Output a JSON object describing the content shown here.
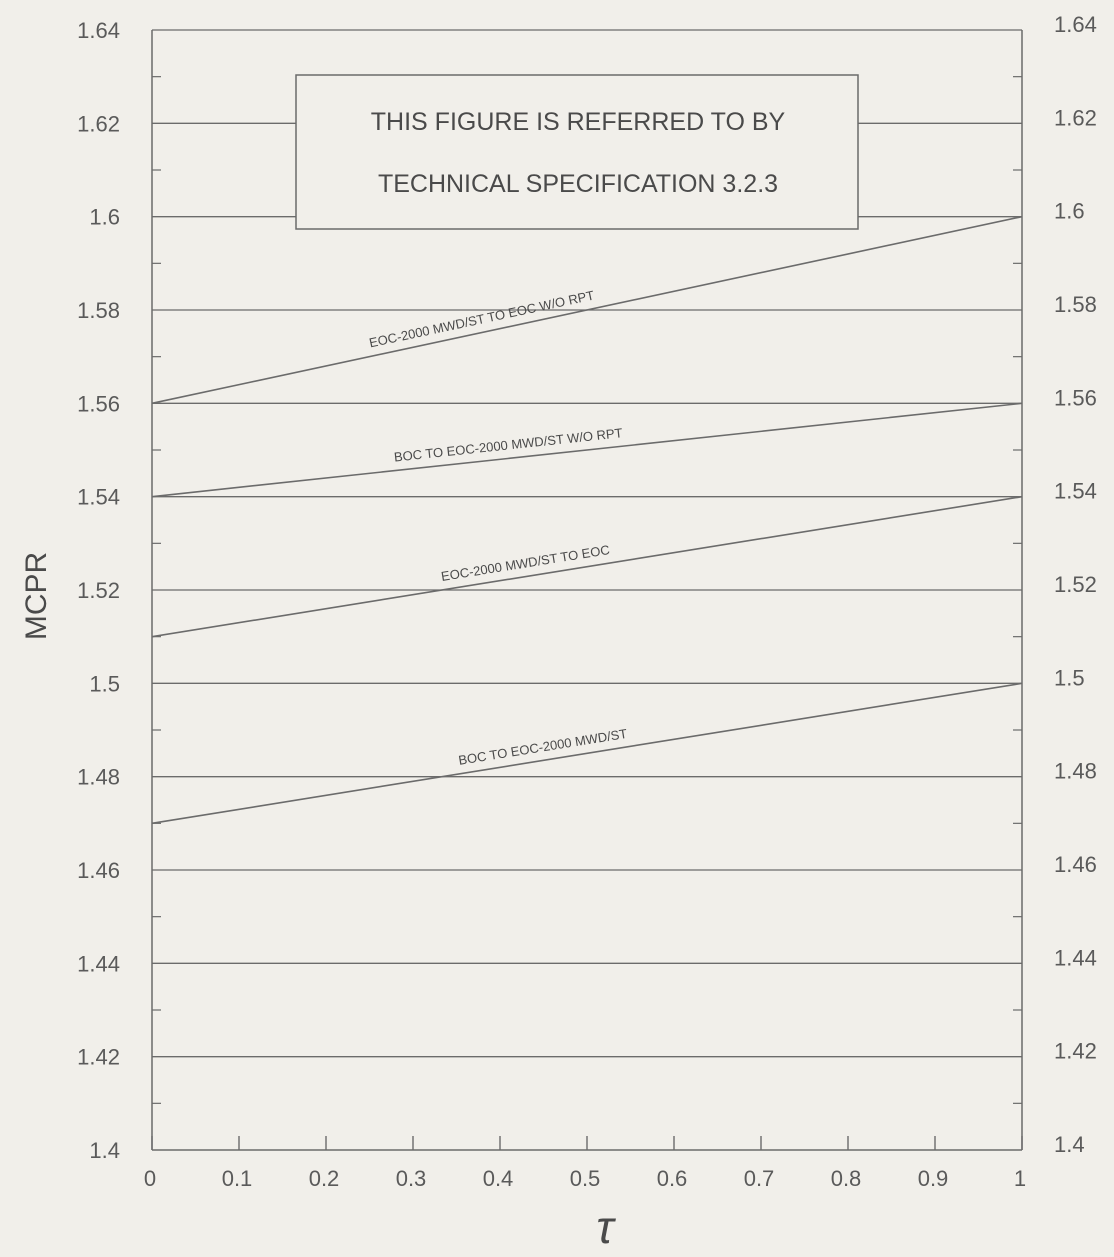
{
  "chart_data": {
    "type": "line",
    "title": "",
    "xlabel": "τ",
    "ylabel": "MCPR",
    "xlim": [
      0,
      1
    ],
    "ylim": [
      1.4,
      1.64
    ],
    "x_ticks": [
      0,
      0.1,
      0.2,
      0.3,
      0.4,
      0.5,
      0.6,
      0.7,
      0.8,
      0.9,
      1
    ],
    "x_tick_labels": [
      "0",
      "0.1",
      "0.2",
      "0.3",
      "0.4",
      "0.5",
      "0.6",
      "0.7",
      "0.8",
      "0.9",
      "1"
    ],
    "y_ticks": [
      1.4,
      1.42,
      1.44,
      1.46,
      1.48,
      1.5,
      1.52,
      1.54,
      1.56,
      1.58,
      1.6,
      1.62,
      1.64
    ],
    "y_tick_labels": [
      "1.4",
      "1.42",
      "1.44",
      "1.46",
      "1.48",
      "1.5",
      "1.52",
      "1.54",
      "1.56",
      "1.58",
      "1.6",
      "1.62",
      "1.64"
    ],
    "right_axis_labels": true,
    "grid": "horizontal",
    "series": [
      {
        "name": "EOC-2000 MWD/ST TO EOC W/O RPT",
        "x": [
          0,
          1
        ],
        "y": [
          1.56,
          1.6
        ]
      },
      {
        "name": "BOC TO EOC-2000 MWD/ST W/O RPT",
        "x": [
          0,
          1
        ],
        "y": [
          1.54,
          1.56
        ]
      },
      {
        "name": "EOC-2000 MWD/ST TO EOC",
        "x": [
          0,
          1
        ],
        "y": [
          1.51,
          1.54
        ]
      },
      {
        "name": "BOC TO EOC-2000 MWD/ST",
        "x": [
          0,
          1
        ],
        "y": [
          1.47,
          1.5
        ]
      }
    ],
    "annotation": {
      "lines": [
        "THIS FIGURE IS REFERRED TO BY",
        "TECHNICAL SPECIFICATION 3.2.3"
      ]
    }
  },
  "colors": {
    "background": "#f1efea",
    "line": "#6b6b6b",
    "text": "#4a4a4a"
  }
}
